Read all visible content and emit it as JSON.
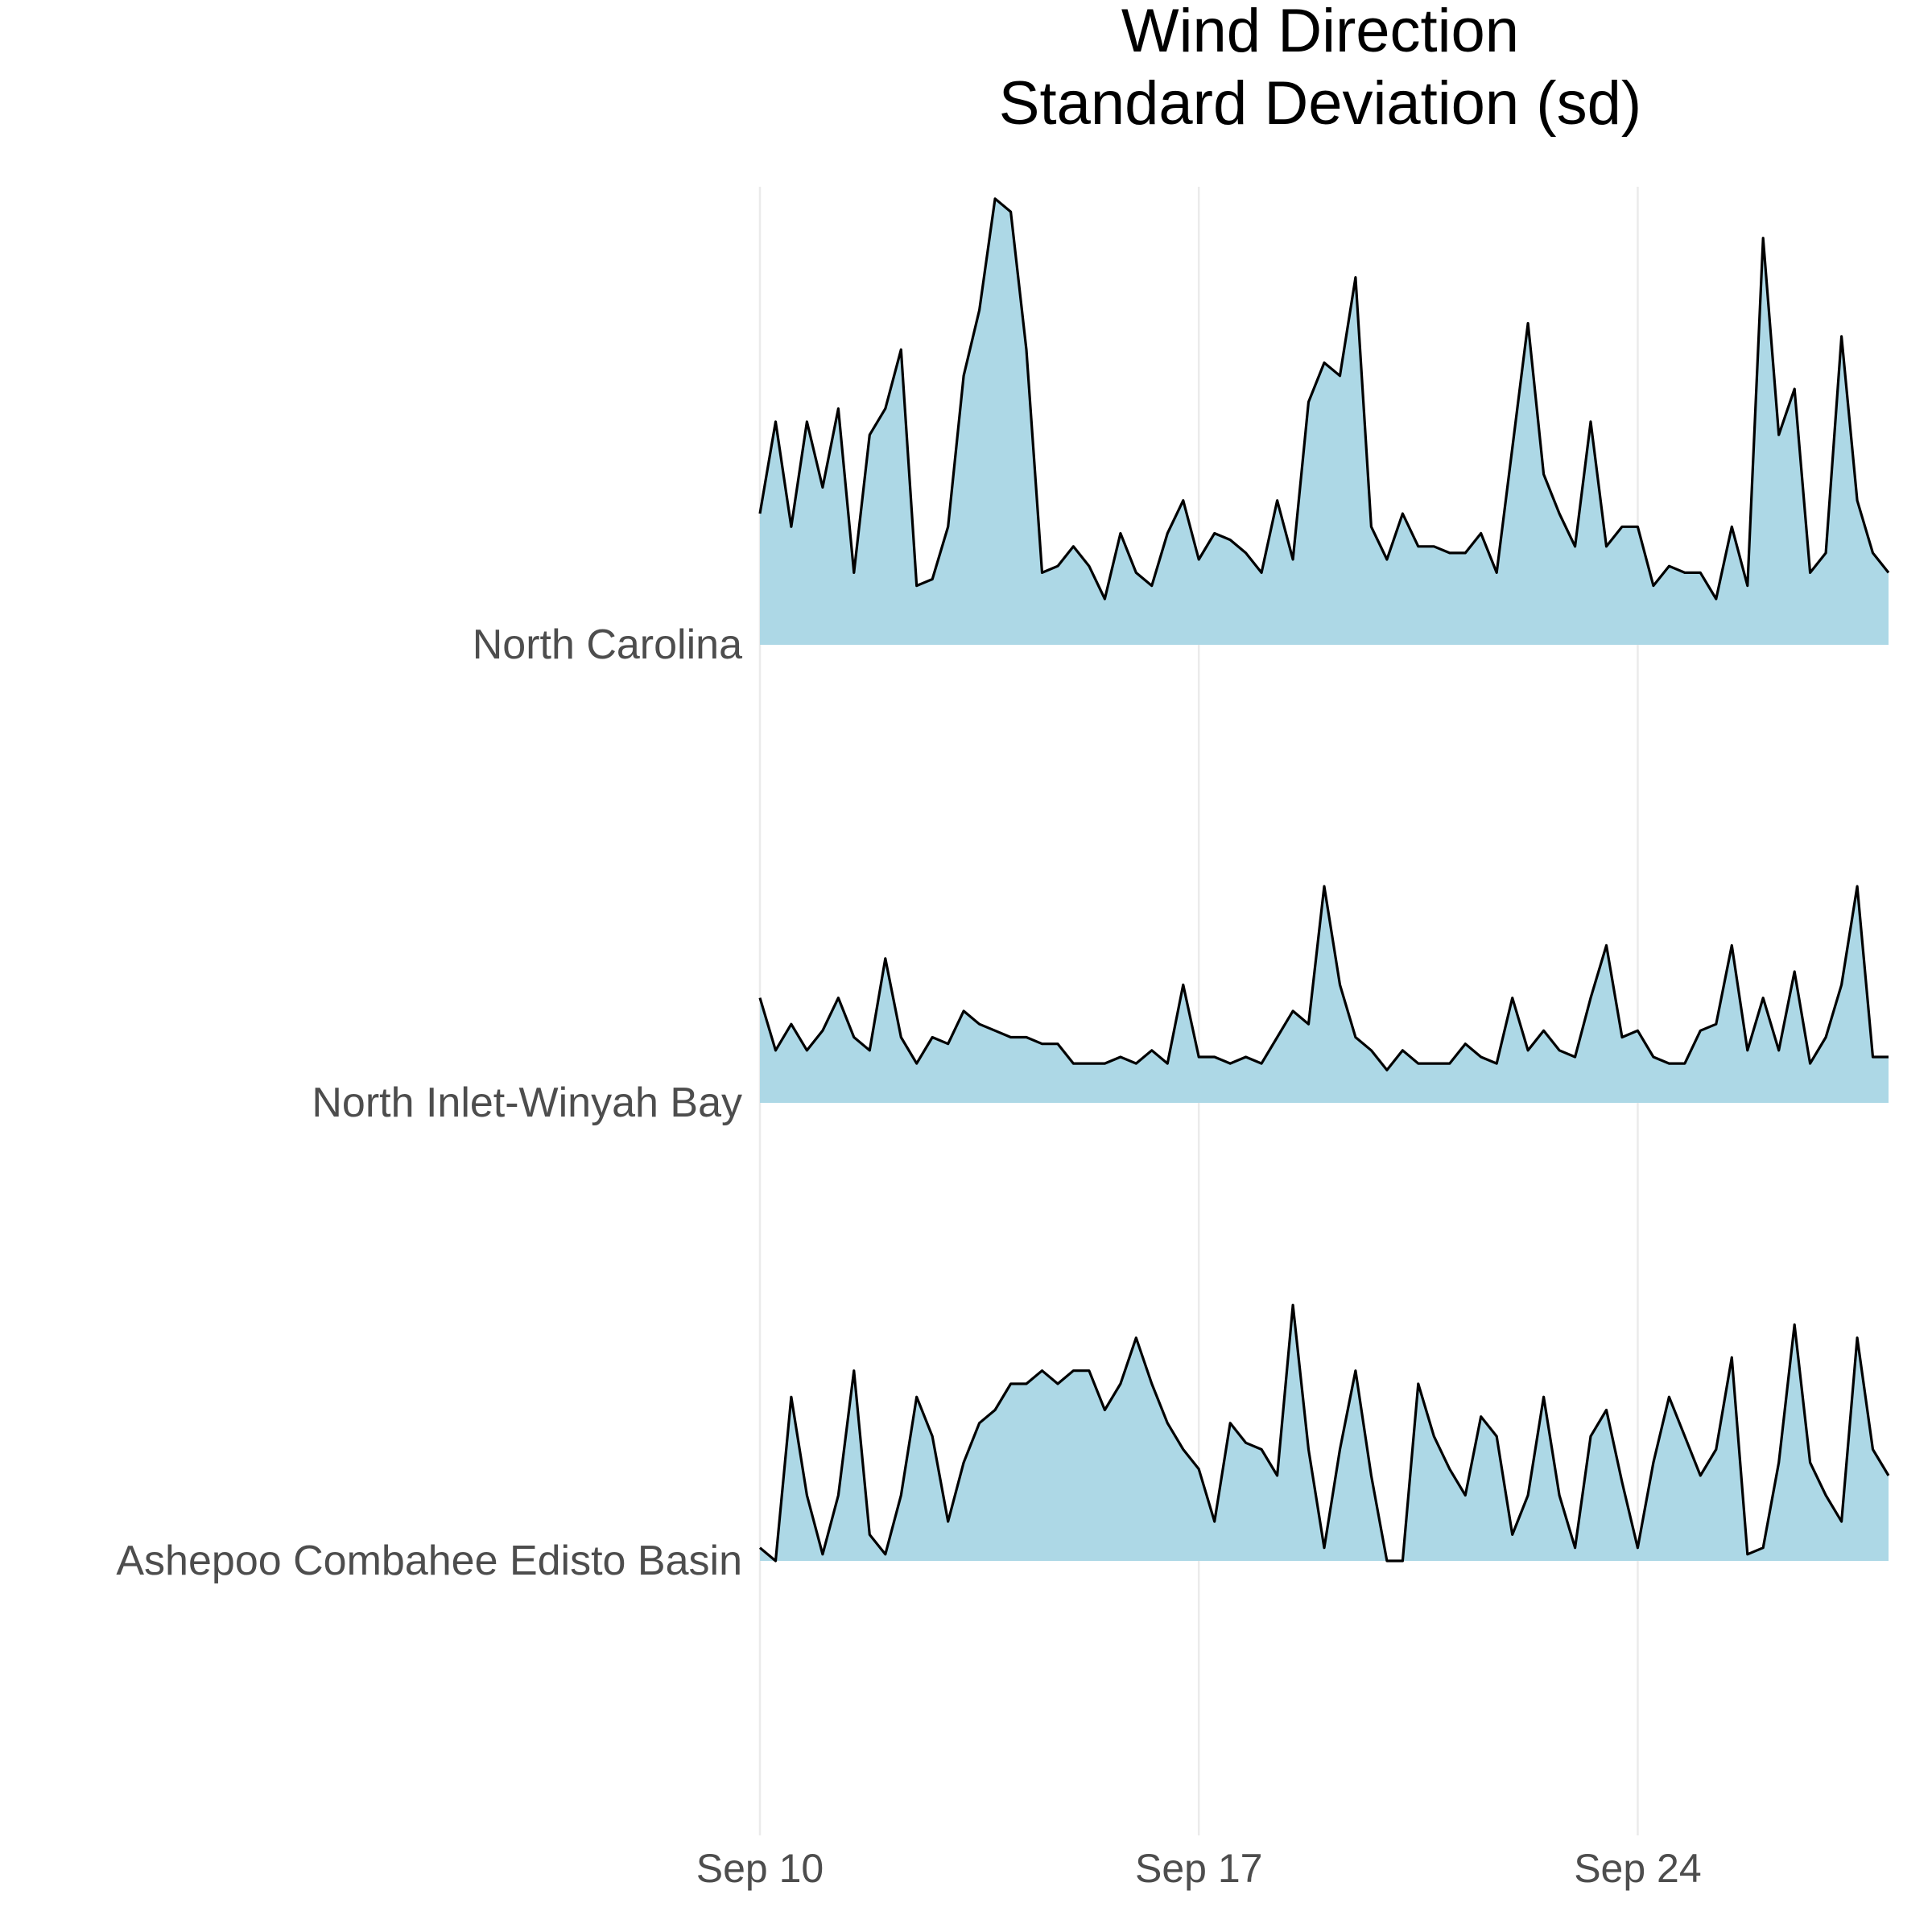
{
  "chart_data": {
    "type": "ridgeline",
    "title": "Wind Direction\nStandard Deviation (sd)",
    "x": [
      10,
      10.25,
      10.5,
      10.75,
      11,
      11.25,
      11.5,
      11.75,
      12,
      12.25,
      12.5,
      12.75,
      13,
      13.25,
      13.5,
      13.75,
      14,
      14.25,
      14.5,
      14.75,
      15,
      15.25,
      15.5,
      15.75,
      16,
      16.25,
      16.5,
      16.75,
      17,
      17.25,
      17.5,
      17.75,
      18,
      18.25,
      18.5,
      18.75,
      19,
      19.25,
      19.5,
      19.75,
      20,
      20.25,
      20.5,
      20.75,
      21,
      21.25,
      21.5,
      21.75,
      22,
      22.25,
      22.5,
      22.75,
      23,
      23.25,
      23.5,
      23.75,
      24,
      24.25,
      24.5,
      24.75,
      25,
      25.25,
      25.5,
      25.75,
      26,
      26.25,
      26.5,
      26.75,
      27,
      27.25,
      27.5,
      27.75,
      28
    ],
    "xlim": [
      10,
      28
    ],
    "xticks": [
      {
        "value": 10,
        "label": "Sep 10"
      },
      {
        "value": 17,
        "label": "Sep 17"
      },
      {
        "value": 24,
        "label": "Sep 24"
      }
    ],
    "grid": true,
    "fill": "#add8e6",
    "line_color": "#000000",
    "series": [
      {
        "name": "North Carolina",
        "values": [
          20,
          34,
          18,
          34,
          24,
          36,
          11,
          32,
          36,
          45,
          9,
          10,
          18,
          41,
          51,
          68,
          66,
          45,
          11,
          12,
          15,
          12,
          7,
          17,
          11,
          9,
          17,
          22,
          13,
          17,
          16,
          14,
          11,
          22,
          13,
          37,
          43,
          41,
          56,
          18,
          13,
          20,
          15,
          15,
          14,
          14,
          17,
          11,
          30,
          49,
          26,
          20,
          15,
          34,
          15,
          18,
          18,
          9,
          12,
          11,
          11,
          7,
          18,
          9,
          62,
          32,
          39,
          11,
          14,
          47,
          22,
          14,
          11
        ]
      },
      {
        "name": "North Inlet-Winyah Bay",
        "values": [
          16,
          8,
          12,
          8,
          11,
          16,
          10,
          8,
          22,
          10,
          6,
          10,
          9,
          14,
          12,
          11,
          10,
          10,
          9,
          9,
          6,
          6,
          6,
          7,
          6,
          8,
          6,
          18,
          7,
          7,
          6,
          7,
          6,
          10,
          14,
          12,
          33,
          18,
          10,
          8,
          5,
          8,
          6,
          6,
          6,
          9,
          7,
          6,
          16,
          8,
          11,
          8,
          7,
          16,
          24,
          10,
          11,
          7,
          6,
          6,
          11,
          12,
          24,
          8,
          16,
          8,
          20,
          6,
          10,
          18,
          33,
          7,
          7
        ]
      },
      {
        "name": "Ashepoo Combahee Edisto Basin",
        "values": [
          2,
          0,
          25,
          10,
          1,
          10,
          29,
          4,
          1,
          10,
          25,
          19,
          6,
          15,
          21,
          23,
          27,
          27,
          29,
          27,
          29,
          29,
          23,
          27,
          34,
          27,
          21,
          17,
          14,
          6,
          21,
          18,
          17,
          13,
          39,
          17,
          2,
          17,
          29,
          13,
          0,
          0,
          27,
          19,
          14,
          10,
          22,
          19,
          4,
          10,
          25,
          10,
          2,
          19,
          23,
          12,
          2,
          15,
          25,
          19,
          13,
          17,
          31,
          1,
          2,
          15,
          36,
          15,
          10,
          6,
          34,
          17,
          13
        ]
      }
    ]
  }
}
